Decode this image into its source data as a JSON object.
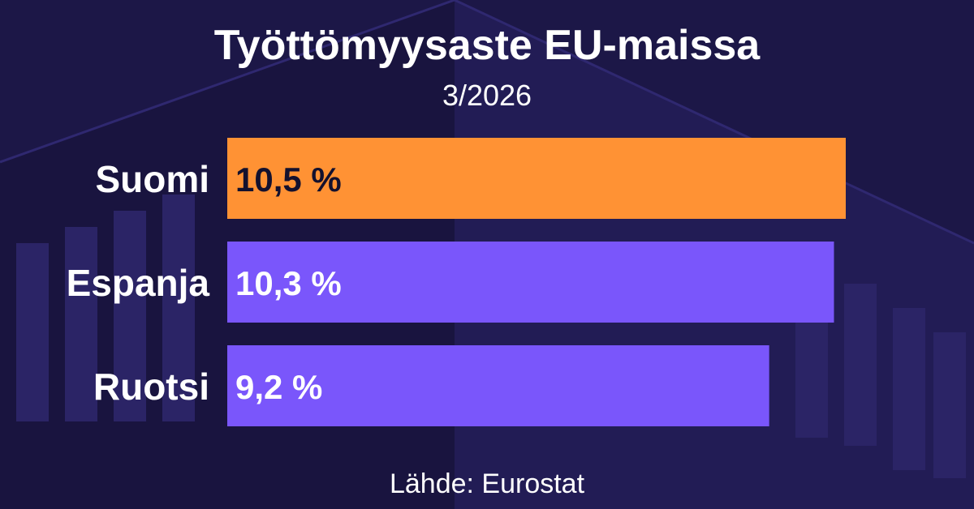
{
  "title": "Työttömyysaste EU-maissa",
  "subtitle": "3/2026",
  "source": "Lähde: Eurostat",
  "colors": {
    "background": "#1c1747",
    "highlight_bar": "#ff9234",
    "bar": "#7a56fb",
    "text_light": "#ffffff",
    "text_dark": "#14112e"
  },
  "chart_data": {
    "type": "bar",
    "orientation": "horizontal",
    "categories": [
      "Suomi",
      "Espanja",
      "Ruotsi"
    ],
    "values": [
      10.5,
      10.3,
      9.2
    ],
    "value_labels": [
      "10,5 %",
      "10,3 %",
      "9,2 %"
    ],
    "highlight": "Suomi",
    "xlim": [
      0,
      10.5
    ],
    "grid": false,
    "title": "Työttömyysaste EU-maissa",
    "subtitle": "3/2026"
  }
}
